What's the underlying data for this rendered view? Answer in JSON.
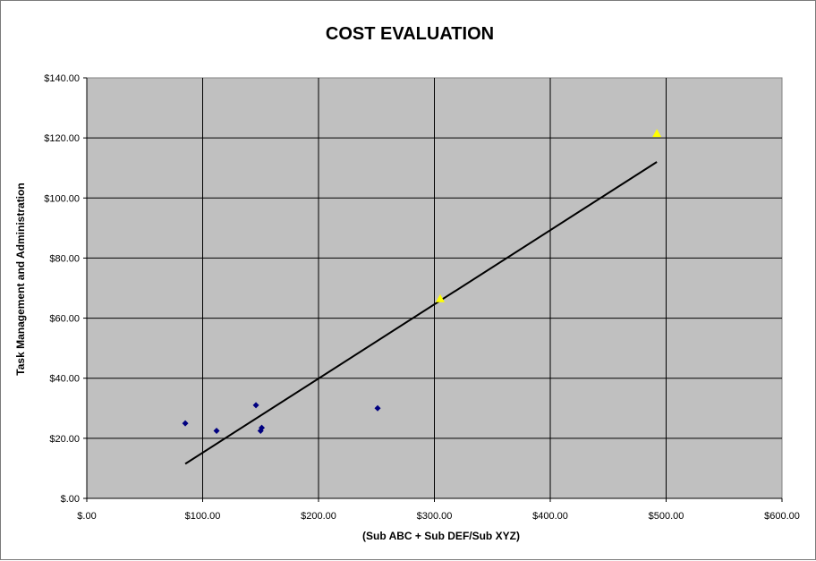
{
  "chart_data": {
    "type": "scatter",
    "title": "COST EVALUATION",
    "xlabel": "(Sub ABC + Sub DEF/Sub XYZ)",
    "ylabel": "Task Management and Administration",
    "xlim": [
      0,
      600
    ],
    "ylim": [
      0,
      140
    ],
    "x_ticks": [
      0,
      100,
      200,
      300,
      400,
      500,
      600
    ],
    "y_ticks": [
      0,
      20,
      40,
      60,
      80,
      100,
      120,
      140
    ],
    "x_tick_labels": [
      "$.00",
      "$100.00",
      "$200.00",
      "$300.00",
      "$400.00",
      "$500.00",
      "$600.00"
    ],
    "y_tick_labels": [
      "$.00",
      "$20.00",
      "$40.00",
      "$60.00",
      "$80.00",
      "$100.00",
      "$120.00",
      "$140.00"
    ],
    "grid": true,
    "plot_background": "#C0C0C0",
    "series": [
      {
        "marker": "diamond",
        "color": "#000080",
        "points": [
          {
            "x": 85,
            "y": 25
          },
          {
            "x": 112,
            "y": 22.5
          },
          {
            "x": 146,
            "y": 31
          },
          {
            "x": 150,
            "y": 22.5
          },
          {
            "x": 151,
            "y": 23.5
          },
          {
            "x": 251,
            "y": 30
          }
        ]
      },
      {
        "marker": "triangle",
        "color": "#FFFF00",
        "points": [
          {
            "x": 305,
            "y": 66.5
          },
          {
            "x": 492,
            "y": 121.5
          }
        ]
      }
    ],
    "trendline": {
      "color": "#000000",
      "from": {
        "x": 85,
        "y": 11.5
      },
      "to": {
        "x": 492,
        "y": 112
      }
    }
  }
}
